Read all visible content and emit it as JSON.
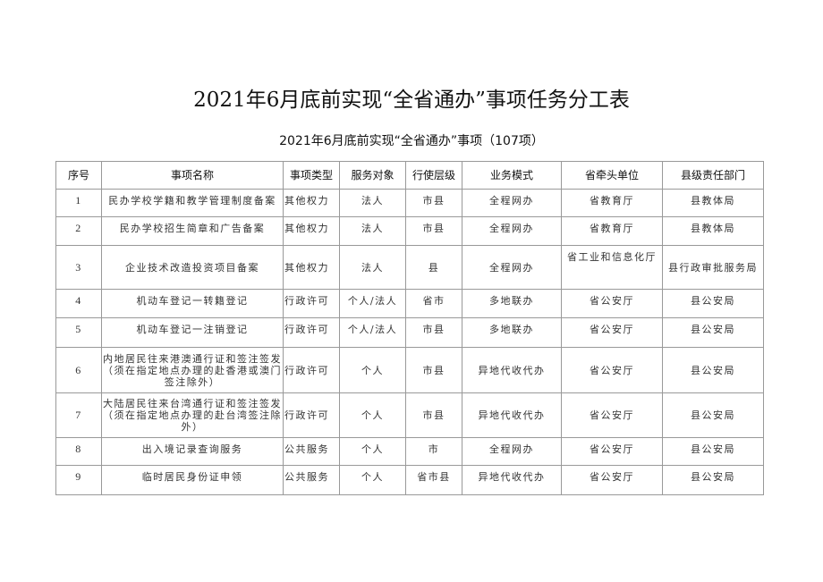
{
  "title": "2021年6月底前实现“全省通办”事项任务分工表",
  "subtitle": "2021年6月底前实现“全省通办”事项（107项）",
  "headers": [
    "序号",
    "事项名称",
    "事项类型",
    "服务对象",
    "行使层级",
    "业务模式",
    "省牵头单位",
    "县级责任部门"
  ],
  "rows": [
    [
      "1",
      "民办学校学籍和教学管理制度备案",
      "其他权力",
      "法人",
      "市县",
      "全程网办",
      "省教育厅",
      "县教体局"
    ],
    [
      "2",
      "民办学校招生简章和广告备案",
      "其他权力",
      "法人",
      "市县",
      "全程网办",
      "省教育厅",
      "县教体局"
    ],
    [
      "3",
      "企业技术改造投资项目备案",
      "其他权力",
      "法人",
      "县",
      "全程网办",
      "省工业和信息化厅",
      "县行政审批服务局"
    ],
    [
      "4",
      "机动车登记一转籍登记",
      "行政许可",
      "个人/法人",
      "省市",
      "多地联办",
      "省公安厅",
      "县公安局"
    ],
    [
      "5",
      "机动车登记一注销登记",
      "行政许可",
      "个人/法人",
      "市县",
      "多地联办",
      "省公安厅",
      "县公安局"
    ],
    [
      "6",
      "内地居民往来港澳通行证和签注签发（须在指定地点办理的赴香港或澳门签注除外）",
      "行政许可",
      "个人",
      "市县",
      "异地代收代办",
      "省公安厅",
      "县公安局"
    ],
    [
      "7",
      "大陆居民往来台湾通行证和签注签发（须在指定地点办理的赴台湾签注除外）",
      "行政许可",
      "个人",
      "市县",
      "异地代收代办",
      "省公安厅",
      "县公安局"
    ],
    [
      "8",
      "出入境记录查询服务",
      "公共服务",
      "个人",
      "市",
      "全程网办",
      "省公安厅",
      "县公安局"
    ],
    [
      "9",
      "临时居民身份证申领",
      "公共服务",
      "个人",
      "省市县",
      "异地代收代办",
      "省公安厅",
      "县公安局"
    ]
  ]
}
